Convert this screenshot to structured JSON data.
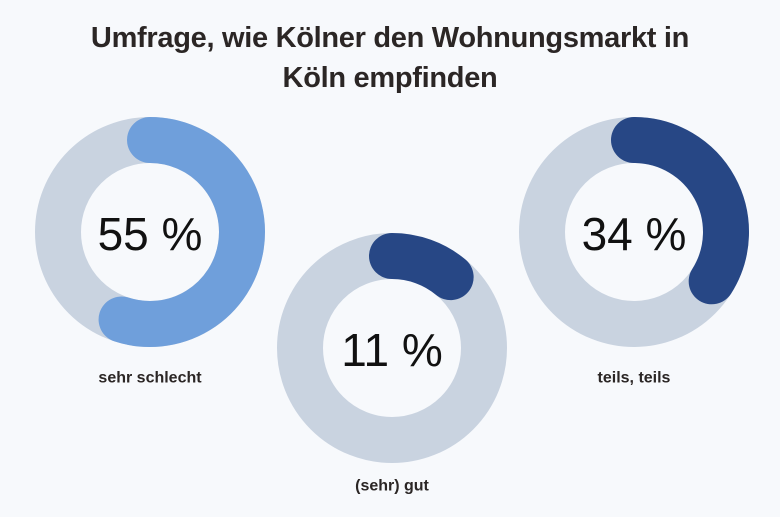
{
  "title_line1": "Umfrage, wie Kölner den Wohnungsmarkt in",
  "title_line2": "Köln empfinden",
  "colors": {
    "background": "#F7F9FC",
    "track": "#C9D3E0",
    "light_blue": "#6F9FDB",
    "dark_blue": "#274785",
    "text": "#2B2625"
  },
  "chart_data": {
    "type": "donut",
    "title": "Umfrage, wie Kölner den Wohnungsmarkt in Köln empfinden",
    "unit": "%",
    "items": [
      {
        "label": "sehr schlecht",
        "value": 55,
        "display": "55 %",
        "color": "#6F9FDB"
      },
      {
        "label": "(sehr) gut",
        "value": 11,
        "display": "11 %",
        "color": "#274785"
      },
      {
        "label": "teils, teils",
        "value": 34,
        "display": "34 %",
        "color": "#274785"
      }
    ]
  }
}
